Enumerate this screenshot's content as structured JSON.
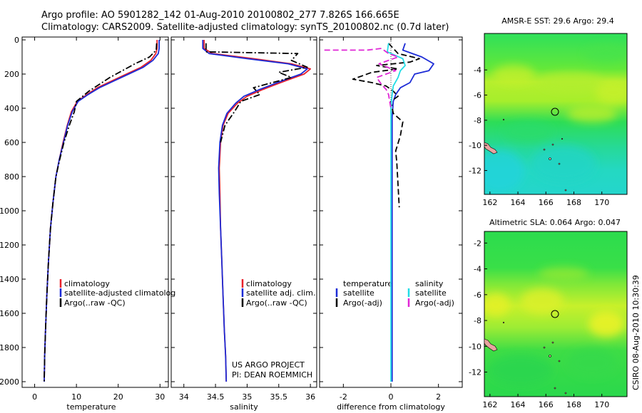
{
  "header": {
    "line1": "Argo profile: AO 5901282_142 01-Aug-2010 20100802_277 7.826S 166.665E",
    "line2": "Climatology: CARS2009. Satellite-adjusted climatology: synTS_20100802.nc (0.7d later)"
  },
  "side_text": "CSIRO 08-Aug-2010 10:30:39",
  "colors": {
    "climatology": "#e8202a",
    "satellite": "#1c2bd6",
    "argo": "#000000",
    "salinity_satellite": "#22dde6",
    "salinity_argo": "#e026d6"
  },
  "chart_data": [
    {
      "id": "temperature",
      "type": "line",
      "xlabel": "temperature",
      "xticks": [
        0,
        10,
        20,
        30
      ],
      "xlim": [
        -3,
        32
      ],
      "ylim": [
        2050,
        0
      ],
      "yticks": [
        0,
        200,
        400,
        600,
        800,
        1000,
        1200,
        1400,
        1600,
        1800,
        2000
      ],
      "series": [
        {
          "name": "climatology",
          "color": "#e8202a",
          "dash": "solid",
          "points": [
            [
              29.3,
              0
            ],
            [
              29.3,
              50
            ],
            [
              29.0,
              80
            ],
            [
              27.8,
              120
            ],
            [
              25.5,
              160
            ],
            [
              22.0,
              200
            ],
            [
              18.5,
              240
            ],
            [
              15.0,
              280
            ],
            [
              12.5,
              320
            ],
            [
              10.2,
              360
            ],
            [
              8.8,
              420
            ],
            [
              7.8,
              500
            ],
            [
              6.8,
              600
            ],
            [
              5.9,
              700
            ],
            [
              5.1,
              800
            ],
            [
              4.4,
              950
            ],
            [
              3.8,
              1100
            ],
            [
              3.3,
              1300
            ],
            [
              2.9,
              1500
            ],
            [
              2.6,
              1700
            ],
            [
              2.4,
              1850
            ],
            [
              2.3,
              2000
            ]
          ]
        },
        {
          "name": "satellite-adjusted climatology",
          "color": "#1c2bd6",
          "dash": "solid",
          "points": [
            [
              29.8,
              0
            ],
            [
              29.8,
              50
            ],
            [
              29.6,
              80
            ],
            [
              28.3,
              120
            ],
            [
              26.0,
              160
            ],
            [
              22.5,
              200
            ],
            [
              19.0,
              240
            ],
            [
              15.5,
              280
            ],
            [
              12.8,
              320
            ],
            [
              10.4,
              360
            ],
            [
              9.0,
              420
            ],
            [
              7.9,
              500
            ],
            [
              6.9,
              600
            ],
            [
              5.9,
              700
            ],
            [
              5.1,
              800
            ],
            [
              4.4,
              950
            ],
            [
              3.8,
              1100
            ],
            [
              3.3,
              1300
            ],
            [
              2.9,
              1500
            ],
            [
              2.6,
              1700
            ],
            [
              2.4,
              1850
            ],
            [
              2.3,
              2000
            ]
          ]
        },
        {
          "name": "Argo(..raw -QC)",
          "color": "#000000",
          "dash": "dashdot",
          "points": [
            [
              29.2,
              20
            ],
            [
              29.1,
              60
            ],
            [
              27.5,
              100
            ],
            [
              24.0,
              140
            ],
            [
              21.0,
              180
            ],
            [
              18.0,
              220
            ],
            [
              15.5,
              260
            ],
            [
              13.0,
              300
            ],
            [
              11.5,
              330
            ],
            [
              10.0,
              360
            ],
            [
              9.5,
              420
            ],
            [
              8.3,
              500
            ],
            [
              7.0,
              600
            ],
            [
              6.0,
              700
            ],
            [
              5.1,
              800
            ],
            [
              4.4,
              950
            ],
            [
              3.8,
              1100
            ],
            [
              3.3,
              1300
            ],
            [
              2.9,
              1500
            ],
            [
              2.6,
              1700
            ],
            [
              2.4,
              1850
            ],
            [
              2.3,
              2000
            ]
          ]
        }
      ],
      "legend": [
        "climatology",
        "satellite-adjusted climatolog",
        "Argo(..raw -QC)"
      ]
    },
    {
      "id": "salinity",
      "type": "line",
      "xlabel": "salinity",
      "xticks": [
        34,
        34.5,
        35,
        35.5,
        36
      ],
      "xtick_labels": [
        "34",
        "34.5",
        "35",
        "35.5",
        "36"
      ],
      "xlim": [
        33.8,
        36.1
      ],
      "ylim": [
        2050,
        0
      ],
      "series": [
        {
          "name": "climatology",
          "color": "#e8202a",
          "dash": "solid",
          "points": [
            [
              34.32,
              0
            ],
            [
              34.32,
              50
            ],
            [
              34.45,
              80
            ],
            [
              35.1,
              110
            ],
            [
              35.7,
              140
            ],
            [
              36.0,
              170
            ],
            [
              35.9,
              200
            ],
            [
              35.6,
              240
            ],
            [
              35.25,
              290
            ],
            [
              35.0,
              330
            ],
            [
              34.85,
              370
            ],
            [
              34.7,
              430
            ],
            [
              34.62,
              500
            ],
            [
              34.58,
              600
            ],
            [
              34.56,
              750
            ],
            [
              34.57,
              900
            ],
            [
              34.58,
              1100
            ],
            [
              34.6,
              1300
            ],
            [
              34.62,
              1500
            ],
            [
              34.64,
              1700
            ],
            [
              34.66,
              1850
            ],
            [
              34.67,
              2000
            ]
          ]
        },
        {
          "name": "satellite adj. clim.",
          "color": "#1c2bd6",
          "dash": "solid",
          "points": [
            [
              34.3,
              0
            ],
            [
              34.3,
              50
            ],
            [
              34.4,
              80
            ],
            [
              35.0,
              110
            ],
            [
              35.65,
              140
            ],
            [
              35.95,
              170
            ],
            [
              35.85,
              200
            ],
            [
              35.55,
              240
            ],
            [
              35.2,
              290
            ],
            [
              34.95,
              330
            ],
            [
              34.82,
              370
            ],
            [
              34.68,
              430
            ],
            [
              34.61,
              500
            ],
            [
              34.57,
              600
            ],
            [
              34.55,
              750
            ],
            [
              34.56,
              900
            ],
            [
              34.58,
              1100
            ],
            [
              34.6,
              1300
            ],
            [
              34.62,
              1500
            ],
            [
              34.64,
              1700
            ],
            [
              34.66,
              1850
            ],
            [
              34.67,
              2000
            ]
          ]
        },
        {
          "name": "Argo(..raw -QC)",
          "color": "#000000",
          "dash": "dashdot",
          "points": [
            [
              34.35,
              20
            ],
            [
              34.35,
              70
            ],
            [
              35.8,
              80
            ],
            [
              35.7,
              120
            ],
            [
              35.95,
              160
            ],
            [
              35.5,
              190
            ],
            [
              35.7,
              220
            ],
            [
              35.1,
              280
            ],
            [
              35.2,
              320
            ],
            [
              34.9,
              360
            ],
            [
              34.8,
              420
            ],
            [
              34.65,
              500
            ],
            [
              34.58,
              600
            ]
          ]
        }
      ],
      "legend": [
        "climatology",
        "satellite adj. clim.",
        "Argo(..raw -QC)"
      ],
      "annotation": [
        "US ARGO PROJECT",
        "PI: DEAN ROEMMICH"
      ]
    },
    {
      "id": "difference",
      "type": "line",
      "xlabel": "difference from climatology",
      "xticks": [
        -2,
        0,
        2
      ],
      "xlim": [
        -3,
        3
      ],
      "ylim": [
        2050,
        0
      ],
      "series": [
        {
          "name": "temperature satellite",
          "color": "#1c2bd6",
          "dash": "solid",
          "points": [
            [
              0.6,
              20
            ],
            [
              0.5,
              60
            ],
            [
              1.3,
              100
            ],
            [
              1.8,
              140
            ],
            [
              1.6,
              180
            ],
            [
              1.0,
              200
            ],
            [
              0.8,
              250
            ],
            [
              0.4,
              280
            ],
            [
              0.2,
              320
            ],
            [
              0.1,
              360
            ],
            [
              0.05,
              450
            ],
            [
              0.05,
              600
            ],
            [
              0.05,
              800
            ],
            [
              0.05,
              1000
            ],
            [
              0.05,
              1400
            ],
            [
              0.05,
              1800
            ],
            [
              0.05,
              2000
            ]
          ]
        },
        {
          "name": "temperature Argo(-adj)",
          "color": "#000000",
          "dash": "dashed",
          "points": [
            [
              -0.1,
              20
            ],
            [
              0.3,
              80
            ],
            [
              1.2,
              110
            ],
            [
              0.8,
              130
            ],
            [
              -0.6,
              150
            ],
            [
              0.3,
              170
            ],
            [
              -0.8,
              190
            ],
            [
              -1.6,
              230
            ],
            [
              -0.8,
              250
            ],
            [
              -0.2,
              270
            ],
            [
              0.1,
              300
            ],
            [
              0.3,
              330
            ],
            [
              0.0,
              360
            ],
            [
              0.1,
              430
            ],
            [
              0.5,
              480
            ],
            [
              0.4,
              560
            ],
            [
              0.2,
              650
            ],
            [
              0.25,
              720
            ],
            [
              0.3,
              850
            ],
            [
              0.35,
              980
            ]
          ]
        },
        {
          "name": "salinity satellite",
          "color": "#22dde6",
          "dash": "solid",
          "points": [
            [
              -0.1,
              20
            ],
            [
              -0.15,
              70
            ],
            [
              0.5,
              110
            ],
            [
              0.6,
              150
            ],
            [
              0.4,
              180
            ],
            [
              0.3,
              220
            ],
            [
              0.1,
              270
            ],
            [
              0.05,
              320
            ],
            [
              0.0,
              400
            ],
            [
              0.0,
              600
            ],
            [
              0.0,
              800
            ],
            [
              0.0,
              1000
            ],
            [
              0.0,
              1400
            ],
            [
              0.0,
              1800
            ],
            [
              0.0,
              2000
            ]
          ]
        },
        {
          "name": "salinity Argo(-adj)",
          "color": "#e026d6",
          "dash": "dashed",
          "points": [
            [
              -2.8,
              60
            ],
            [
              -1.0,
              60
            ],
            [
              -0.4,
              50
            ],
            [
              -0.1,
              80
            ],
            [
              0.3,
              100
            ],
            [
              -0.5,
              140
            ],
            [
              0.2,
              180
            ],
            [
              -0.6,
              220
            ],
            [
              -0.4,
              260
            ],
            [
              -0.2,
              290
            ],
            [
              -0.1,
              320
            ],
            [
              -0.05,
              360
            ],
            [
              0.0,
              400
            ]
          ]
        }
      ],
      "legend": {
        "temperature_title": "temperature",
        "salinity_title": "salinity",
        "temperature": [
          "satellite",
          "Argo(-adj)"
        ],
        "salinity": [
          "satellite",
          "Argo(-adj)"
        ]
      }
    },
    {
      "id": "sst_map",
      "type": "heatmap",
      "title": "AMSR-E SST: 29.6 Argo: 29.4",
      "xticks": [
        162,
        164,
        166,
        168,
        170
      ],
      "yticks": [
        -4,
        -6,
        -8,
        -10,
        -12
      ],
      "xlim": [
        161.6,
        171.8
      ],
      "ylim": [
        -13.9,
        -1.1
      ],
      "argo_position": [
        166.665,
        -7.826
      ]
    },
    {
      "id": "sla_map",
      "type": "heatmap",
      "title": "Altimetric SLA: 0.064 Argo: 0.047",
      "xticks": [
        162,
        164,
        166,
        168,
        170
      ],
      "yticks": [
        -2,
        -4,
        -6,
        -8,
        -10,
        -12
      ],
      "xlim": [
        161.6,
        171.8
      ],
      "ylim": [
        -13.9,
        -1.1
      ],
      "argo_position": [
        166.665,
        -7.826
      ]
    }
  ]
}
